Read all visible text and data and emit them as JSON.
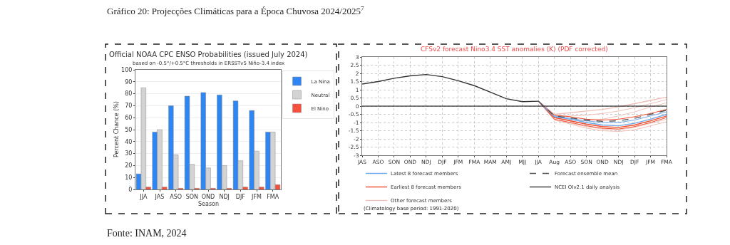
{
  "chart_data": [
    {
      "type": "bar",
      "title": "Official NOAA CPC ENSO Probabilities (issued July 2024)",
      "subtitle": "based on -0.5°/+0.5°C thresholds in ERSSTv5 Niño-3.4 index",
      "xlabel": "Season",
      "ylabel": "Percent Chance (%)",
      "categories": [
        "JJA",
        "JAS",
        "ASO",
        "SON",
        "OND",
        "NDJ",
        "DJF",
        "JFM",
        "FMA"
      ],
      "series": [
        {
          "name": "La Nina",
          "color": "#2e86f5",
          "values": [
            13,
            48,
            70,
            78,
            81,
            79,
            74,
            66,
            48
          ]
        },
        {
          "name": "Neutral",
          "color": "#d3d3d3",
          "values": [
            85,
            50,
            29,
            21,
            18,
            20,
            24,
            32,
            48
          ]
        },
        {
          "name": "El Nino",
          "color": "#f5503c",
          "values": [
            2,
            2,
            1,
            1,
            1,
            1,
            2,
            2,
            4
          ]
        }
      ],
      "ylim": [
        0,
        100
      ],
      "yticks": [
        0,
        10,
        20,
        30,
        40,
        50,
        60,
        70,
        80,
        90,
        100
      ],
      "grid": "y",
      "legend": "top right",
      "annotations": [
        "Gráfico 20: Projecções Climáticas para a Época Chuvosa 2024/2025$^{7}$",
        "Fonte: INAM, 2024"
      ]
    },
    {
      "type": "line",
      "title": "CFSv2 forecast Nino3.4 SST anomalies (K) (PDF corrected)",
      "categories": [
        "JAS",
        "ASO",
        "SON",
        "OND",
        "NDJ",
        "DJF",
        "JFM",
        "FMA",
        "MAM",
        "AMJ",
        "MJJ",
        "JJA",
        "Aug",
        "ASO",
        "SON",
        "OND",
        "NDJ",
        "DJF",
        "JFM",
        "FMA"
      ],
      "series": [
        {
          "name": "Other forecast members",
          "color": "#f0c0b8",
          "values": [
            null,
            null,
            null,
            null,
            null,
            null,
            null,
            null,
            null,
            null,
            null,
            0.3,
            -0.5,
            -0.4,
            -0.3,
            -0.2,
            -0.05,
            0.15,
            0.35,
            0.55
          ]
        },
        {
          "color": "#f0c0b8",
          "values": [
            null,
            null,
            null,
            null,
            null,
            null,
            null,
            null,
            null,
            null,
            null,
            0.3,
            -0.6,
            -0.6,
            -0.55,
            -0.45,
            -0.3,
            -0.1,
            0.15,
            0.4
          ]
        },
        {
          "color": "#f0c0b8",
          "values": [
            null,
            null,
            null,
            null,
            null,
            null,
            null,
            null,
            null,
            null,
            null,
            0.3,
            -0.85,
            -1.1,
            -1.35,
            -1.5,
            -1.55,
            -1.45,
            -1.2,
            -0.95
          ]
        },
        {
          "color": "#f0c0b8",
          "values": [
            null,
            null,
            null,
            null,
            null,
            null,
            null,
            null,
            null,
            null,
            null,
            0.3,
            -0.7,
            -0.85,
            -0.9,
            -0.8,
            -0.6,
            -0.35,
            -0.05,
            0.2
          ]
        },
        {
          "color": "#f0c0b8",
          "values": [
            null,
            null,
            null,
            null,
            null,
            null,
            null,
            null,
            null,
            null,
            null,
            0.3,
            -0.8,
            -1.05,
            -1.25,
            -1.4,
            -1.45,
            -1.3,
            -1.05,
            -0.8
          ]
        },
        {
          "name": "Earliest 8 forecast members",
          "color": "#f04a2a",
          "values": [
            null,
            null,
            null,
            null,
            null,
            null,
            null,
            null,
            null,
            null,
            null,
            0.3,
            -0.7,
            -0.9,
            -1.1,
            -1.25,
            -1.3,
            -1.15,
            -0.9,
            -0.6
          ]
        },
        {
          "color": "#f04a2a",
          "values": [
            null,
            null,
            null,
            null,
            null,
            null,
            null,
            null,
            null,
            null,
            null,
            0.3,
            -0.55,
            -0.65,
            -0.8,
            -0.85,
            -0.8,
            -0.65,
            -0.45,
            -0.2
          ]
        },
        {
          "color": "#f04a2a",
          "values": [
            null,
            null,
            null,
            null,
            null,
            null,
            null,
            null,
            null,
            null,
            null,
            0.3,
            -0.8,
            -1.0,
            -1.2,
            -1.35,
            -1.4,
            -1.25,
            -1.0,
            -0.7
          ]
        },
        {
          "name": "Latest 8 forecast members",
          "color": "#6fa8e8",
          "values": [
            null,
            null,
            null,
            null,
            null,
            null,
            null,
            null,
            null,
            null,
            null,
            0.3,
            -0.65,
            -0.8,
            -1.0,
            -1.15,
            -1.2,
            -1.05,
            -0.8,
            -0.5
          ]
        },
        {
          "color": "#6fa8e8",
          "values": [
            null,
            null,
            null,
            null,
            null,
            null,
            null,
            null,
            null,
            null,
            null,
            0.3,
            -0.6,
            -0.75,
            -0.9,
            -1.0,
            -1.0,
            -0.85,
            -0.6,
            -0.35
          ]
        },
        {
          "name": "Forecast ensemble mean",
          "color": "#555555",
          "line_style": "dashed",
          "values": [
            null,
            null,
            null,
            null,
            null,
            null,
            null,
            null,
            null,
            null,
            null,
            0.3,
            -0.6,
            -0.72,
            -0.85,
            -0.93,
            -0.9,
            -0.75,
            -0.5,
            -0.25
          ]
        },
        {
          "name": "NCEI OIv2.1 daily analysis",
          "color": "#333333",
          "values": [
            1.35,
            1.5,
            1.7,
            1.85,
            1.93,
            1.8,
            1.55,
            1.25,
            0.85,
            0.45,
            0.27,
            0.3,
            null,
            null,
            null,
            null,
            null,
            null,
            null,
            null
          ]
        }
      ],
      "ylim": [
        -3,
        3
      ],
      "yticks": [
        -3,
        -2.5,
        -2,
        -1.5,
        -1,
        -0.5,
        0,
        0.5,
        1,
        1.5,
        2,
        2.5,
        3
      ],
      "grid": true,
      "legend": "bottom",
      "ref_lines": [
        {
          "axis": "y",
          "value": 0,
          "color": "#000000"
        }
      ],
      "annotations": [
        "(Climatology base period: 1991-2020)"
      ]
    }
  ]
}
